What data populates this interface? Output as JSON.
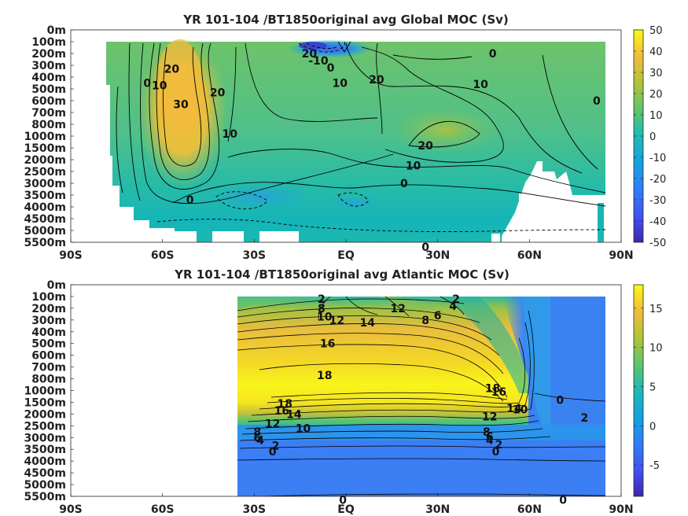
{
  "chart_data": [
    {
      "type": "heatmap",
      "title": "YR 101-104 /BT1850original avg  Global MOC (Sv)",
      "y_tick_labels": [
        "0m",
        "100m",
        "200m",
        "300m",
        "400m",
        "500m",
        "600m",
        "700m",
        "800m",
        "1000m",
        "1500m",
        "2000m",
        "2500m",
        "3000m",
        "3500m",
        "4000m",
        "4500m",
        "5000m",
        "5500m"
      ],
      "x_tick_labels": [
        "90S",
        "60S",
        "30S",
        "EQ",
        "30N",
        "60N",
        "90N"
      ],
      "xlim": [
        -90,
        90
      ],
      "colorbar": {
        "min": -50,
        "max": 50,
        "ticks": [
          "50",
          "40",
          "30",
          "20",
          "10",
          "0",
          "-10",
          "-20",
          "-30",
          "-40",
          "-50"
        ]
      },
      "contour_labels": [
        {
          "text": "20",
          "lat": -12,
          "depth_index": 2
        },
        {
          "text": "-10",
          "lat": -9,
          "depth_index": 2.6
        },
        {
          "text": "0",
          "lat": -5,
          "depth_index": 3.2
        },
        {
          "text": "0",
          "lat": 48,
          "depth_index": 2
        },
        {
          "text": "10",
          "lat": -2,
          "depth_index": 4.5
        },
        {
          "text": "20",
          "lat": 10,
          "depth_index": 4.2
        },
        {
          "text": "10",
          "lat": 44,
          "depth_index": 4.6
        },
        {
          "text": "0",
          "lat": 82,
          "depth_index": 6
        },
        {
          "text": "20",
          "lat": -57,
          "depth_index": 3.3
        },
        {
          "text": "10",
          "lat": -61,
          "depth_index": 4.7
        },
        {
          "text": "0",
          "lat": -65,
          "depth_index": 4.5
        },
        {
          "text": "30",
          "lat": -54,
          "depth_index": 6.3
        },
        {
          "text": "20",
          "lat": -42,
          "depth_index": 5.3
        },
        {
          "text": "10",
          "lat": -38,
          "depth_index": 8.8
        },
        {
          "text": "20",
          "lat": 26,
          "depth_index": 9.8
        },
        {
          "text": "10",
          "lat": 22,
          "depth_index": 11.5
        },
        {
          "text": "0",
          "lat": 19,
          "depth_index": 13
        },
        {
          "text": "0",
          "lat": -51,
          "depth_index": 14.4
        },
        {
          "text": "0",
          "lat": 26,
          "depth_index": 18.4
        }
      ]
    },
    {
      "type": "heatmap",
      "title": "YR 101-104 /BT1850original avg  Atlantic MOC (Sv)",
      "y_tick_labels": [
        "0m",
        "100m",
        "200m",
        "300m",
        "400m",
        "500m",
        "600m",
        "700m",
        "800m",
        "1000m",
        "1500m",
        "2000m",
        "2500m",
        "3000m",
        "3500m",
        "4000m",
        "4500m",
        "5000m",
        "5500m"
      ],
      "x_tick_labels": [
        "90S",
        "60S",
        "30S",
        "EQ",
        "30N",
        "60N",
        "90N"
      ],
      "xlim": [
        -90,
        90
      ],
      "colorbar": {
        "min": -9,
        "max": 18,
        "ticks": [
          "15",
          "10",
          "5",
          "0",
          "-5"
        ]
      },
      "contour_labels": [
        {
          "text": "2",
          "lat": -8,
          "depth_index": 1.2
        },
        {
          "text": "2",
          "lat": 36,
          "depth_index": 1.2
        },
        {
          "text": "4",
          "lat": 35,
          "depth_index": 1.8
        },
        {
          "text": "8",
          "lat": -8,
          "depth_index": 2
        },
        {
          "text": "12",
          "lat": 17,
          "depth_index": 2
        },
        {
          "text": "6",
          "lat": 30,
          "depth_index": 2.6
        },
        {
          "text": "8",
          "lat": 26,
          "depth_index": 3
        },
        {
          "text": "10",
          "lat": -7,
          "depth_index": 2.7
        },
        {
          "text": "12",
          "lat": -3,
          "depth_index": 3
        },
        {
          "text": "14",
          "lat": 7,
          "depth_index": 3.2
        },
        {
          "text": "16",
          "lat": -6,
          "depth_index": 5
        },
        {
          "text": "18",
          "lat": -7,
          "depth_index": 7.7
        },
        {
          "text": "18",
          "lat": -20,
          "depth_index": 10.1
        },
        {
          "text": "16",
          "lat": -21,
          "depth_index": 10.7
        },
        {
          "text": "14",
          "lat": -17,
          "depth_index": 11
        },
        {
          "text": "12",
          "lat": -24,
          "depth_index": 11.8
        },
        {
          "text": "10",
          "lat": -14,
          "depth_index": 12.2
        },
        {
          "text": "8",
          "lat": -29,
          "depth_index": 12.5
        },
        {
          "text": "6",
          "lat": -29,
          "depth_index": 13
        },
        {
          "text": "4",
          "lat": -28,
          "depth_index": 13.2
        },
        {
          "text": "2",
          "lat": -23,
          "depth_index": 13.7
        },
        {
          "text": "0",
          "lat": -24,
          "depth_index": 14.2
        },
        {
          "text": "18",
          "lat": 48,
          "depth_index": 8.8
        },
        {
          "text": "16",
          "lat": 50,
          "depth_index": 9.1
        },
        {
          "text": "14",
          "lat": 55,
          "depth_index": 10.5
        },
        {
          "text": "10",
          "lat": 57,
          "depth_index": 10.6
        },
        {
          "text": "12",
          "lat": 47,
          "depth_index": 11.2
        },
        {
          "text": "8",
          "lat": 46,
          "depth_index": 12.5
        },
        {
          "text": "6",
          "lat": 47,
          "depth_index": 12.9
        },
        {
          "text": "4",
          "lat": 47,
          "depth_index": 13.2
        },
        {
          "text": "2",
          "lat": 50,
          "depth_index": 13.6
        },
        {
          "text": "0",
          "lat": 49,
          "depth_index": 14.2
        },
        {
          "text": "0",
          "lat": 70,
          "depth_index": 9.8
        },
        {
          "text": "2",
          "lat": 78,
          "depth_index": 11.3
        },
        {
          "text": "0",
          "lat": -1,
          "depth_index": 18.3
        },
        {
          "text": "0",
          "lat": 71,
          "depth_index": 18.3
        }
      ]
    }
  ]
}
